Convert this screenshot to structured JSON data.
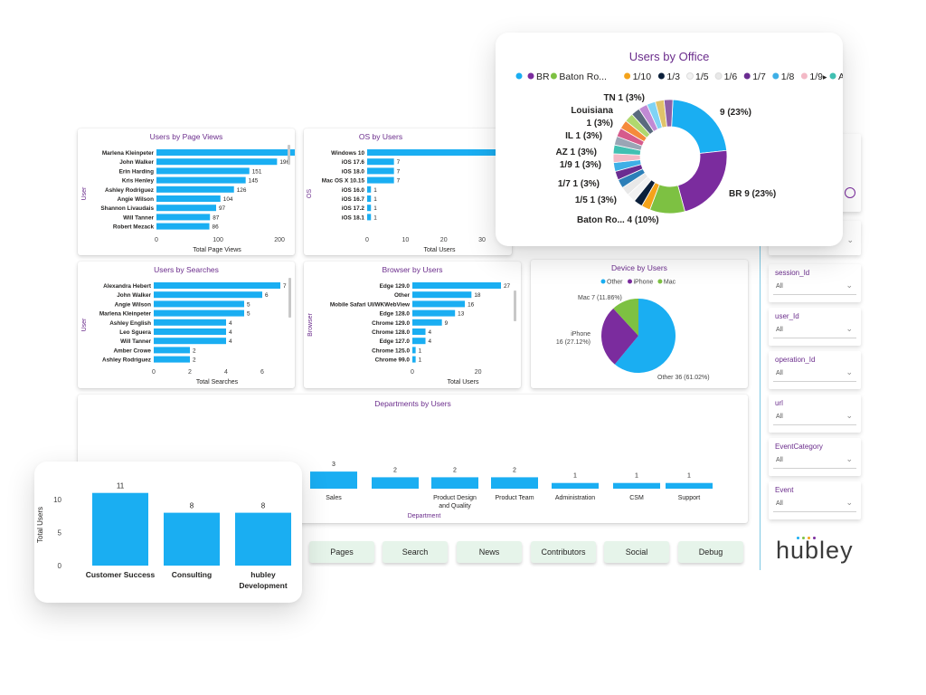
{
  "colors": {
    "bar": "#1AAEF2",
    "title": "#6B2D8C",
    "office": [
      "#1AAEF2",
      "#7B2C9E",
      "#7DC142",
      "#F4A31B",
      "#0B1F3A",
      "#F2F2F2",
      "#E8E8E8",
      "#2C7FB8",
      "#6A2C91",
      "#3EAFE6",
      "#F3B9C6",
      "#41C0B2",
      "#9AA5B5",
      "#D65B8C",
      "#F58A3B",
      "#B0D86E",
      "#5A6B7E",
      "#C08AD4",
      "#7FD3F5",
      "#E0C36A",
      "#8E5FA8",
      "#2D4D6E",
      "#F0A3A3",
      "#4E9C46"
    ],
    "device": [
      "#1AAEF2",
      "#7B2C9E",
      "#7DC142"
    ]
  },
  "page_views": {
    "title": "Users by Page Views",
    "axis_label": "User",
    "xlabel": "Total Page Views",
    "ticks": [
      "0",
      "100",
      "200"
    ],
    "bars": [
      {
        "label": "Marlena Kleinpeter",
        "value": 266,
        "text": "266"
      },
      {
        "label": "John Walker",
        "value": 196,
        "text": "196"
      },
      {
        "label": "Erin Harding",
        "value": 151,
        "text": "151"
      },
      {
        "label": "Kris Henley",
        "value": 145,
        "text": "145"
      },
      {
        "label": "Ashley Rodriguez",
        "value": 126,
        "text": "126"
      },
      {
        "label": "Angie Wilson",
        "value": 104,
        "text": "104"
      },
      {
        "label": "Shannon Livaudais",
        "value": 97,
        "text": "97"
      },
      {
        "label": "Will Tanner",
        "value": 87,
        "text": "87"
      },
      {
        "label": "Robert Mezack",
        "value": 86,
        "text": "86"
      }
    ]
  },
  "os": {
    "title": "OS by Users",
    "axis_label": "OS",
    "xlabel": "Total Users",
    "ticks": [
      "0",
      "10",
      "20",
      "30"
    ],
    "bars": [
      {
        "label": "Windows 10",
        "value": 34,
        "text": ""
      },
      {
        "label": "iOS 17.6",
        "value": 7,
        "text": "7"
      },
      {
        "label": "iOS 18.0",
        "value": 7,
        "text": "7"
      },
      {
        "label": "Mac OS X 10.15",
        "value": 7,
        "text": "7"
      },
      {
        "label": "iOS 16.0",
        "value": 1,
        "text": "1"
      },
      {
        "label": "iOS 16.7",
        "value": 1,
        "text": "1"
      },
      {
        "label": "iOS 17.2",
        "value": 1,
        "text": "1"
      },
      {
        "label": "iOS 18.1",
        "value": 1,
        "text": "1"
      }
    ]
  },
  "searches": {
    "title": "Users by Searches",
    "axis_label": "User",
    "xlabel": "Total Searches",
    "ticks": [
      "0",
      "2",
      "4",
      "6"
    ],
    "bars": [
      {
        "label": "Alexandra Hebert",
        "value": 7,
        "text": "7"
      },
      {
        "label": "John Walker",
        "value": 6,
        "text": "6"
      },
      {
        "label": "Angie Wilson",
        "value": 5,
        "text": "5"
      },
      {
        "label": "Marlena Kleinpeter",
        "value": 5,
        "text": "5"
      },
      {
        "label": "Ashley English",
        "value": 4,
        "text": "4"
      },
      {
        "label": "Leo Sguera",
        "value": 4,
        "text": "4"
      },
      {
        "label": "Will Tanner",
        "value": 4,
        "text": "4"
      },
      {
        "label": "Amber Crowe",
        "value": 2,
        "text": "2"
      },
      {
        "label": "Ashley Rodriguez",
        "value": 2,
        "text": "2"
      }
    ]
  },
  "browser": {
    "title": "Browser by Users",
    "axis_label": "Browser",
    "xlabel": "Total Users",
    "ticks": [
      "0",
      "20"
    ],
    "bars": [
      {
        "label": "Edge 129.0",
        "value": 27,
        "text": "27"
      },
      {
        "label": "Other",
        "value": 18,
        "text": "18"
      },
      {
        "label": "Mobile Safari UI/WKWebView",
        "value": 16,
        "text": "16"
      },
      {
        "label": "Edge 128.0",
        "value": 13,
        "text": "13"
      },
      {
        "label": "Chrome 129.0",
        "value": 9,
        "text": "9"
      },
      {
        "label": "Chrome 128.0",
        "value": 4,
        "text": "4"
      },
      {
        "label": "Edge 127.0",
        "value": 4,
        "text": "4"
      },
      {
        "label": "Chrome 125.0",
        "value": 1,
        "text": "1"
      },
      {
        "label": "Chrome 99.0",
        "value": 1,
        "text": "1"
      }
    ]
  },
  "device": {
    "title": "Device by Users",
    "legend": [
      "Other",
      "iPhone",
      "Mac"
    ],
    "slices": [
      {
        "name": "Other",
        "value": 36,
        "label": "Other 36 (61.02%)"
      },
      {
        "name": "iPhone",
        "value": 16,
        "label": "iPhone"
      },
      {
        "name": "Mac",
        "value": 7,
        "label": "Mac 7 (11.86%)"
      }
    ],
    "iphone_detail": "16 (27.12%)"
  },
  "departments": {
    "title": "Departments by Users",
    "xlabel": "Department",
    "bars": [
      {
        "label": "Sales",
        "value": 3
      },
      {
        "label": "",
        "value": 2
      },
      {
        "label": "Product Design",
        "label2": "and Quality",
        "value": 2
      },
      {
        "label": "Product Team",
        "value": 2
      },
      {
        "label": "Administration",
        "value": 1
      },
      {
        "label": "CSM",
        "value": 1
      },
      {
        "label": "Support",
        "value": 1
      }
    ]
  },
  "dept_zoom": {
    "ylabel": "Total Users",
    "ticks": [
      "10",
      "5",
      "0"
    ],
    "bars": [
      {
        "label": "Customer Success",
        "value": 11
      },
      {
        "label": "Consulting",
        "value": 8
      },
      {
        "label": "hubley",
        "label2": "Development",
        "value": 8
      }
    ]
  },
  "office": {
    "title": "Users by Office",
    "legend": [
      {
        "name": "",
        "color": "#1AAEF2"
      },
      {
        "name": "BR",
        "color": "#7B2C9E"
      },
      {
        "name": "Baton Ro...",
        "color": "#7DC142"
      },
      {
        "name": "1/10",
        "color": "#F4A31B"
      },
      {
        "name": "1/3",
        "color": "#0B1F3A"
      },
      {
        "name": "1/5",
        "color": "#F2F2F2"
      },
      {
        "name": "1/6",
        "color": "#E8E8E8"
      },
      {
        "name": "1/7",
        "color": "#6A2C91"
      },
      {
        "name": "1/8",
        "color": "#3EAFE6"
      },
      {
        "name": "1/9",
        "color": "#F3B9C6"
      },
      {
        "name": "AZ",
        "color": "#41C0B2"
      }
    ],
    "slices": [
      9,
      9,
      4,
      1,
      1,
      1,
      1,
      1,
      1,
      1,
      1,
      1,
      1,
      1,
      1,
      1,
      1,
      1,
      1,
      1,
      1
    ],
    "labels": {
      "big_top": "9 (23%)",
      "big_br": "BR 9 (23%)",
      "baton": "Baton Ro... 4 (10%)",
      "tn": "TN 1 (3%)",
      "louisiana": "Louisiana",
      "louisiana_val": "1 (3%)",
      "il": "IL 1 (3%)",
      "az": "AZ 1 (3%)",
      "n19": "1/9 1 (3%)",
      "n17": "1/7 1 (3%)",
      "n15": "1/5 1 (3%)"
    }
  },
  "slicers": [
    {
      "label": "",
      "value": ""
    },
    {
      "label": "session_Id",
      "value": "All"
    },
    {
      "label": "user_Id",
      "value": "All"
    },
    {
      "label": "operation_Id",
      "value": "All"
    },
    {
      "label": "url",
      "value": "All"
    },
    {
      "label": "EventCategory",
      "value": "All"
    },
    {
      "label": "Event",
      "value": "All"
    }
  ],
  "nav": [
    "Pages",
    "Search",
    "News",
    "Contributors",
    "Social",
    "Debug"
  ],
  "logo": "hubley"
}
